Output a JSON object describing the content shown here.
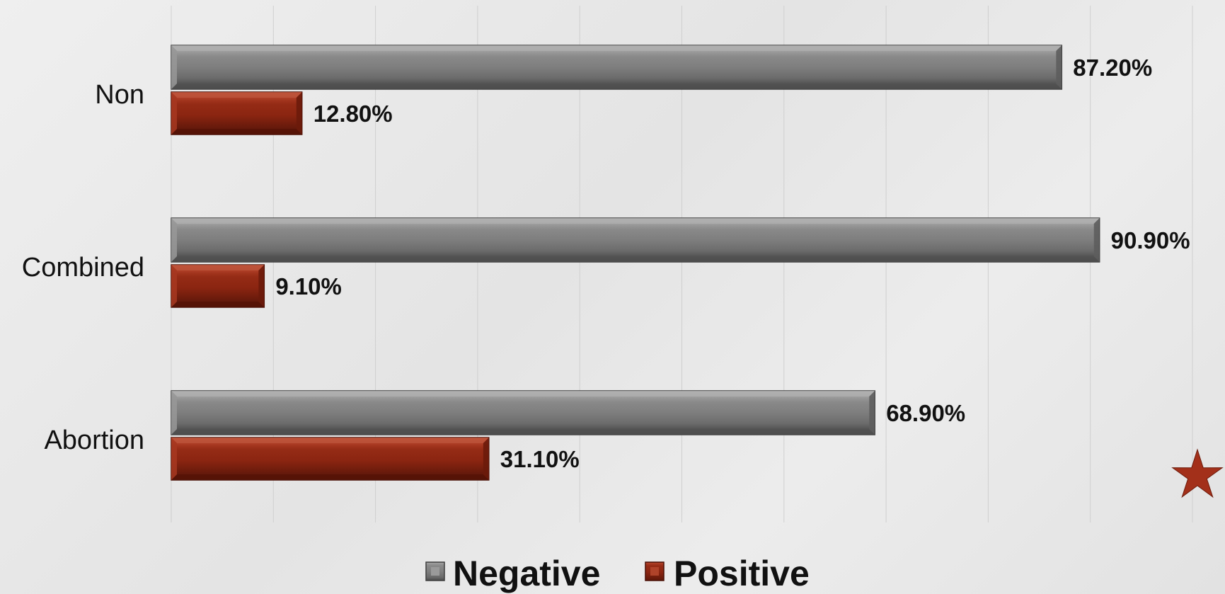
{
  "chart_data": {
    "type": "bar",
    "orientation": "horizontal",
    "categories": [
      "Non",
      "Combined",
      "Abortion"
    ],
    "series": [
      {
        "name": "Negative",
        "values": [
          87.2,
          90.9,
          68.9
        ],
        "labels": [
          "87.20%",
          "90.90%",
          "68.90%"
        ],
        "color": "#7a7a7a"
      },
      {
        "name": "Positive",
        "values": [
          12.8,
          9.1,
          31.1
        ],
        "labels": [
          "12.80%",
          "9.10%",
          "31.10%"
        ],
        "color": "#8b2511"
      }
    ],
    "xlim": [
      0,
      100
    ],
    "grid": true,
    "legend_position": "bottom",
    "title": "",
    "xlabel": "",
    "ylabel": ""
  },
  "decoration": {
    "star_color": "#a3301a"
  }
}
